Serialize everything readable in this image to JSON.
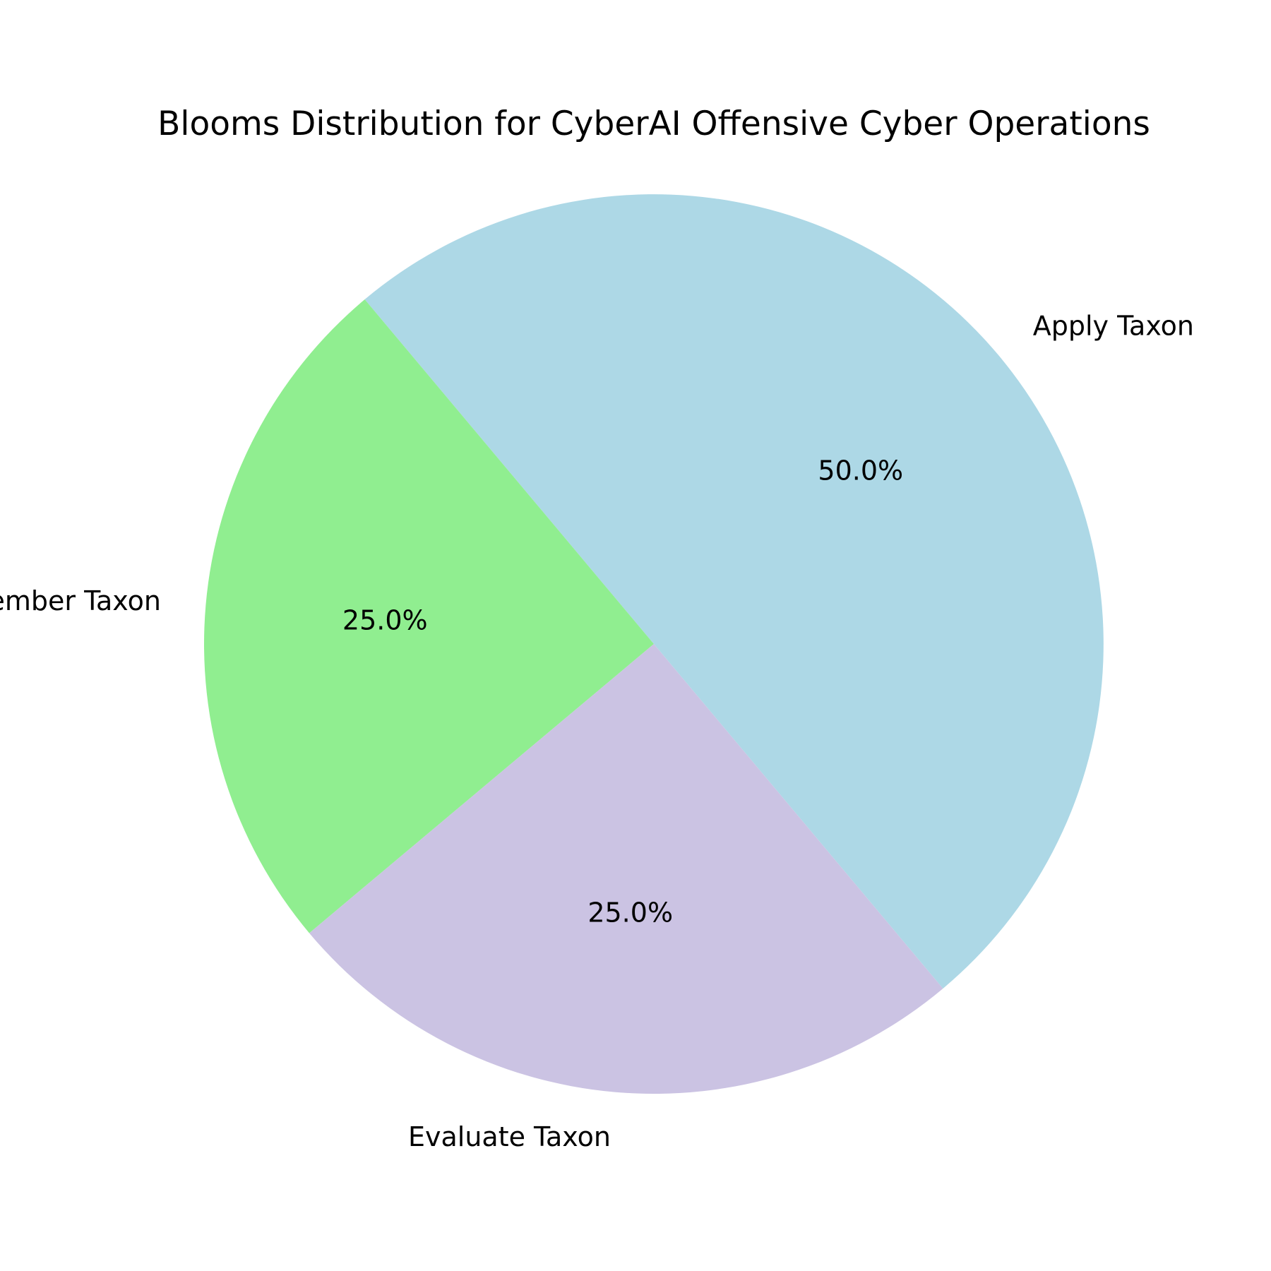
{
  "chart_data": {
    "type": "pie",
    "title": "Blooms Distribution for CyberAI Offensive Cyber Operations",
    "categories": [
      "Apply Taxon",
      "Remember Taxon",
      "Evaluate Taxon"
    ],
    "values": [
      50.0,
      25.0,
      25.0
    ],
    "pct_labels": [
      "50.0%",
      "25.0%",
      "25.0%"
    ],
    "colors": [
      "#add8e6",
      "#90ee90",
      "#cbc3e3"
    ],
    "start_angle_deg": -50,
    "direction": "clockwise",
    "legend": "none"
  }
}
